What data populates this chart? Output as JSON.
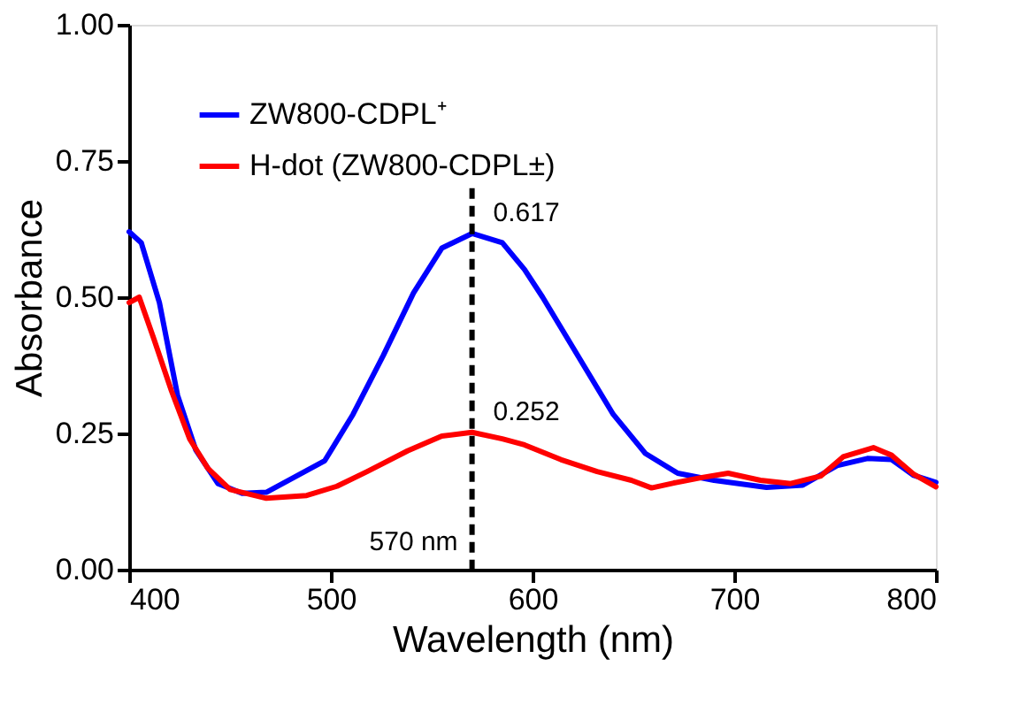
{
  "chart_data": {
    "type": "line",
    "xlabel": "Wavelength (nm)",
    "ylabel": "Absorbance",
    "xlim": [
      400,
      800
    ],
    "xticks": [
      400,
      500,
      600,
      700,
      800
    ],
    "ylim": [
      0,
      1
    ],
    "yticks": [
      {
        "value": 0,
        "label": "0.00"
      },
      {
        "value": 0.25,
        "label": "0.25"
      },
      {
        "value": 0.5,
        "label": "0.50"
      },
      {
        "value": 0.75,
        "label": "0.75"
      },
      {
        "value": 1,
        "label": "1.00"
      }
    ],
    "grid": false,
    "legend": "top left",
    "marker": "none",
    "line_style": "solid",
    "series": [
      {
        "name": "ZW800-CDPL⁺",
        "color": "#0000ff",
        "x": [
          400,
          406,
          415,
          424,
          433,
          444,
          456,
          468,
          482,
          497,
          511,
          526,
          541,
          555,
          570,
          585,
          596,
          605,
          626,
          640,
          656,
          672,
          690,
          716,
          734,
          751,
          766,
          778,
          789,
          800
        ],
        "values": [
          0.62,
          0.6,
          0.49,
          0.32,
          0.22,
          0.158,
          0.14,
          0.142,
          0.17,
          0.2,
          0.285,
          0.393,
          0.508,
          0.59,
          0.617,
          0.6,
          0.551,
          0.5,
          0.371,
          0.285,
          0.213,
          0.177,
          0.164,
          0.151,
          0.155,
          0.191,
          0.204,
          0.202,
          0.173,
          0.16
        ]
      },
      {
        "name": "H-dot (ZW800-CDPL±)",
        "color": "#ff0000",
        "x": [
          400,
          405,
          412,
          421,
          430,
          439,
          450,
          468,
          488,
          503,
          518,
          538,
          555,
          570,
          585,
          596,
          614,
          632,
          649,
          659,
          670,
          684,
          697,
          713,
          728,
          743,
          754,
          769,
          778,
          789,
          800
        ],
        "values": [
          0.49,
          0.5,
          0.426,
          0.328,
          0.24,
          0.186,
          0.147,
          0.131,
          0.136,
          0.153,
          0.18,
          0.218,
          0.245,
          0.252,
          0.24,
          0.229,
          0.202,
          0.18,
          0.164,
          0.15,
          0.159,
          0.169,
          0.177,
          0.164,
          0.158,
          0.172,
          0.207,
          0.224,
          0.21,
          0.175,
          0.152
        ]
      }
    ],
    "ref_lines": [
      {
        "axis": "x",
        "value": 570,
        "label": "570 nm",
        "color": "#000000",
        "line_style": "dashed"
      }
    ],
    "annotations": [
      {
        "text": "0.617",
        "x": 570,
        "y": 0.617
      },
      {
        "text": "0.252",
        "x": 570,
        "y": 0.252
      }
    ]
  }
}
